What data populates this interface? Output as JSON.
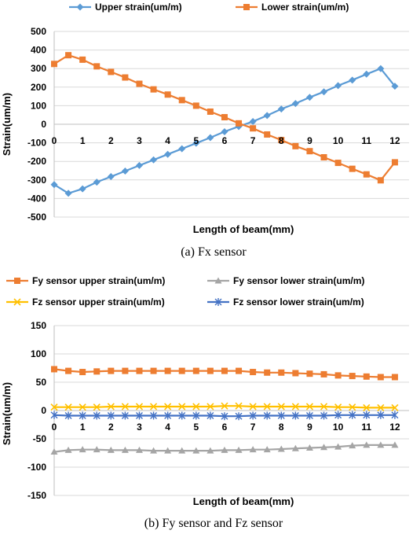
{
  "chart_data": [
    {
      "type": "line",
      "caption": "(a) Fx sensor",
      "xlabel": "Length of beam(mm)",
      "ylabel": "Strain(um/m)",
      "xlim": [
        0,
        12.5
      ],
      "ylim": [
        -500,
        500
      ],
      "x_ticks": [
        0,
        1,
        2,
        3,
        4,
        5,
        6,
        7,
        8,
        9,
        10,
        11,
        12
      ],
      "y_ticks": [
        -500,
        -400,
        -300,
        -200,
        -100,
        0,
        100,
        200,
        300,
        400,
        500
      ],
      "grid": "horizontal",
      "legend": "top",
      "series": [
        {
          "name": "Upper strain(um/m)",
          "color": "#5B9BD5",
          "marker": "diamond",
          "points": [
            [
              0,
              -325
            ],
            [
              0.5,
              -372
            ],
            [
              1,
              -348
            ],
            [
              1.5,
              -312
            ],
            [
              2,
              -282
            ],
            [
              2.5,
              -252
            ],
            [
              3,
              -222
            ],
            [
              3.5,
              -192
            ],
            [
              4,
              -162
            ],
            [
              4.5,
              -132
            ],
            [
              5,
              -102
            ],
            [
              5.5,
              -72
            ],
            [
              6,
              -40
            ],
            [
              6.5,
              -12
            ],
            [
              7,
              15
            ],
            [
              7.5,
              47
            ],
            [
              8,
              82
            ],
            [
              8.5,
              112
            ],
            [
              9,
              145
            ],
            [
              9.5,
              175
            ],
            [
              10,
              208
            ],
            [
              10.5,
              238
            ],
            [
              11,
              270
            ],
            [
              11.5,
              300
            ],
            [
              12,
              205
            ]
          ]
        },
        {
          "name": "Lower strain(um/m)",
          "color": "#ED7D31",
          "marker": "square",
          "points": [
            [
              0,
              325
            ],
            [
              0.5,
              372
            ],
            [
              1,
              348
            ],
            [
              1.5,
              312
            ],
            [
              2,
              282
            ],
            [
              2.5,
              252
            ],
            [
              3,
              218
            ],
            [
              3.5,
              188
            ],
            [
              4,
              160
            ],
            [
              4.5,
              130
            ],
            [
              5,
              100
            ],
            [
              5.5,
              68
            ],
            [
              6,
              38
            ],
            [
              6.5,
              5
            ],
            [
              7,
              -22
            ],
            [
              7.5,
              -55
            ],
            [
              8,
              -85
            ],
            [
              8.5,
              -118
            ],
            [
              9,
              -145
            ],
            [
              9.5,
              -178
            ],
            [
              10,
              -208
            ],
            [
              10.5,
              -240
            ],
            [
              11,
              -270
            ],
            [
              11.5,
              -302
            ],
            [
              12,
              -205
            ]
          ]
        }
      ]
    },
    {
      "type": "line",
      "caption": "(b) Fy sensor and Fz sensor",
      "xlabel": "Length of beam(mm)",
      "ylabel": "Strain(um/m)",
      "xlim": [
        0,
        12.5
      ],
      "ylim": [
        -150,
        150
      ],
      "x_ticks": [
        0,
        1,
        2,
        3,
        4,
        5,
        6,
        7,
        8,
        9,
        10,
        11,
        12
      ],
      "y_ticks": [
        -150,
        -100,
        -50,
        0,
        50,
        100,
        150
      ],
      "grid": "horizontal",
      "legend": "top",
      "series": [
        {
          "name": "Fy sensor upper strain(um/m)",
          "color": "#ED7D31",
          "marker": "square",
          "points": [
            [
              0,
              73
            ],
            [
              0.5,
              70
            ],
            [
              1,
              68
            ],
            [
              1.5,
              69
            ],
            [
              2,
              70
            ],
            [
              2.5,
              70
            ],
            [
              3,
              70
            ],
            [
              3.5,
              70
            ],
            [
              4,
              70
            ],
            [
              4.5,
              70
            ],
            [
              5,
              70
            ],
            [
              5.5,
              70
            ],
            [
              6,
              70
            ],
            [
              6.5,
              70
            ],
            [
              7,
              68
            ],
            [
              7.5,
              67
            ],
            [
              8,
              67
            ],
            [
              8.5,
              66
            ],
            [
              9,
              65
            ],
            [
              9.5,
              64
            ],
            [
              10,
              62
            ],
            [
              10.5,
              61
            ],
            [
              11,
              60
            ],
            [
              11.5,
              59
            ],
            [
              12,
              59
            ]
          ]
        },
        {
          "name": "Fy sensor lower strain(um/m)",
          "color": "#A5A5A5",
          "marker": "triangle",
          "points": [
            [
              0,
              -73
            ],
            [
              0.5,
              -70
            ],
            [
              1,
              -69
            ],
            [
              1.5,
              -69
            ],
            [
              2,
              -70
            ],
            [
              2.5,
              -70
            ],
            [
              3,
              -70
            ],
            [
              3.5,
              -71
            ],
            [
              4,
              -71
            ],
            [
              4.5,
              -71
            ],
            [
              5,
              -71
            ],
            [
              5.5,
              -71
            ],
            [
              6,
              -70
            ],
            [
              6.5,
              -70
            ],
            [
              7,
              -69
            ],
            [
              7.5,
              -69
            ],
            [
              8,
              -68
            ],
            [
              8.5,
              -67
            ],
            [
              9,
              -66
            ],
            [
              9.5,
              -65
            ],
            [
              10,
              -64
            ],
            [
              10.5,
              -62
            ],
            [
              11,
              -61
            ],
            [
              11.5,
              -61
            ],
            [
              12,
              -61
            ]
          ]
        },
        {
          "name": "Fz sensor upper strain(um/m)",
          "color": "#FFC000",
          "marker": "x",
          "points": [
            [
              0,
              6
            ],
            [
              0.5,
              6
            ],
            [
              1,
              6
            ],
            [
              1.5,
              6
            ],
            [
              2,
              7
            ],
            [
              2.5,
              7
            ],
            [
              3,
              7
            ],
            [
              3.5,
              7
            ],
            [
              4,
              7
            ],
            [
              4.5,
              7
            ],
            [
              5,
              7
            ],
            [
              5.5,
              7
            ],
            [
              6,
              8
            ],
            [
              6.5,
              8
            ],
            [
              7,
              7
            ],
            [
              7.5,
              7
            ],
            [
              8,
              7
            ],
            [
              8.5,
              7
            ],
            [
              9,
              7
            ],
            [
              9.5,
              7
            ],
            [
              10,
              6
            ],
            [
              10.5,
              6
            ],
            [
              11,
              5
            ],
            [
              11.5,
              5
            ],
            [
              12,
              5
            ]
          ]
        },
        {
          "name": "Fz sensor lower strain(um/m)",
          "color": "#4472C4",
          "marker": "star",
          "points": [
            [
              0,
              -8
            ],
            [
              0.5,
              -9
            ],
            [
              1,
              -9
            ],
            [
              1.5,
              -9
            ],
            [
              2,
              -9
            ],
            [
              2.5,
              -9
            ],
            [
              3,
              -9
            ],
            [
              3.5,
              -9
            ],
            [
              4,
              -9
            ],
            [
              4.5,
              -9
            ],
            [
              5,
              -9
            ],
            [
              5.5,
              -9
            ],
            [
              6,
              -10
            ],
            [
              6.5,
              -10
            ],
            [
              7,
              -9
            ],
            [
              7.5,
              -9
            ],
            [
              8,
              -9
            ],
            [
              8.5,
              -9
            ],
            [
              9,
              -9
            ],
            [
              9.5,
              -9
            ],
            [
              10,
              -8
            ],
            [
              10.5,
              -8
            ],
            [
              11,
              -8
            ],
            [
              11.5,
              -8
            ],
            [
              12,
              -8
            ]
          ]
        }
      ]
    }
  ]
}
